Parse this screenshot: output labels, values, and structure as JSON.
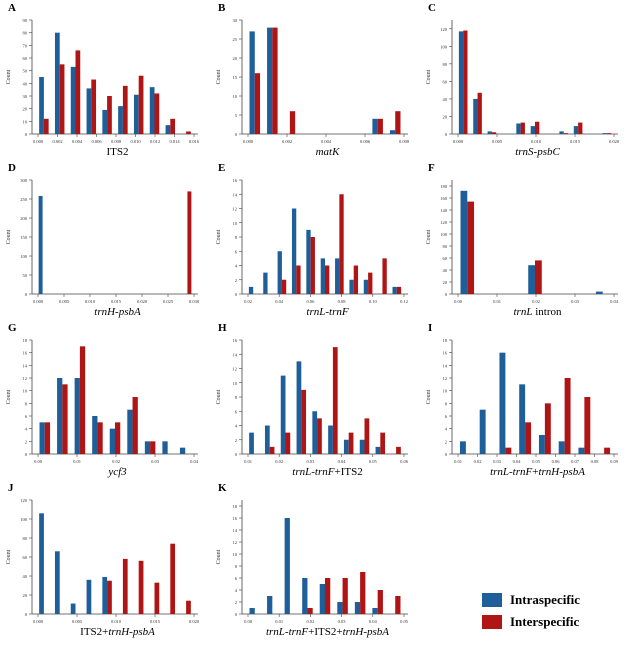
{
  "colors": {
    "intraspecific": "#1f5f99",
    "interspecific": "#b01515"
  },
  "legend": {
    "position": "bottom-right",
    "items": [
      "Intraspecific",
      "Interspecific"
    ]
  },
  "chart_data": [
    {
      "panel": "A",
      "type": "bar",
      "xlabel": [
        {
          "t": "ITS2",
          "i": false
        }
      ],
      "ylabel": "Count",
      "ylim": [
        0,
        90
      ],
      "ystep": 10,
      "xticks": [
        "0.000",
        "0.002",
        "0.004",
        "0.006",
        "0.008",
        "0.010",
        "0.012",
        "0.014",
        "0.016"
      ],
      "series": [
        {
          "name": "Intraspecific",
          "values": [
            45,
            80,
            53,
            36,
            19,
            22,
            31,
            37,
            7,
            0
          ]
        },
        {
          "name": "Interspecific",
          "values": [
            12,
            55,
            66,
            43,
            30,
            38,
            46,
            32,
            12,
            2
          ]
        }
      ]
    },
    {
      "panel": "B",
      "type": "bar",
      "xlabel": [
        {
          "t": "matK",
          "i": true
        }
      ],
      "ylabel": "Count",
      "ylim": [
        0,
        30
      ],
      "ystep": 5,
      "xticks": [
        "0.000",
        "0.002",
        "0.004",
        "0.006",
        "0.008"
      ],
      "series": [
        {
          "name": "Intraspecific",
          "values": [
            27,
            28,
            0,
            0,
            0,
            0,
            0,
            4,
            1
          ]
        },
        {
          "name": "Interspecific",
          "values": [
            16,
            28,
            6,
            0,
            0,
            0,
            0,
            4,
            6
          ]
        }
      ]
    },
    {
      "panel": "C",
      "type": "bar",
      "xlabel": [
        {
          "t": "trnS-psbC",
          "i": true
        }
      ],
      "ylabel": "Count",
      "ylim": [
        0,
        130
      ],
      "ystep": 20,
      "xticks": [
        "0.000",
        "0.005",
        "0.010",
        "0.015",
        "0.020"
      ],
      "series": [
        {
          "name": "Intraspecific",
          "values": [
            117,
            40,
            3,
            0,
            12,
            9,
            0,
            3,
            9,
            0,
            1
          ]
        },
        {
          "name": "Interspecific",
          "values": [
            118,
            47,
            2,
            0,
            13,
            14,
            0,
            1,
            13,
            0,
            1
          ]
        }
      ]
    },
    {
      "panel": "D",
      "type": "bar",
      "xlabel": [
        {
          "t": "trnH-psbA",
          "i": true
        }
      ],
      "ylabel": "Count",
      "ylim": [
        0,
        300
      ],
      "ystep": 50,
      "xticks": [
        "0.000",
        "0.005",
        "0.010",
        "0.015",
        "0.020",
        "0.025",
        "0.030"
      ],
      "series": [
        {
          "name": "Intraspecific",
          "values": [
            258,
            0,
            0,
            0,
            0,
            0,
            0,
            0,
            0,
            0,
            0,
            0
          ]
        },
        {
          "name": "Interspecific",
          "values": [
            0,
            0,
            0,
            0,
            0,
            0,
            0,
            0,
            0,
            0,
            0,
            270
          ]
        }
      ]
    },
    {
      "panel": "E",
      "type": "bar",
      "xlabel": [
        {
          "t": "trnL-trnF",
          "i": true
        }
      ],
      "ylabel": "Count",
      "ylim": [
        0,
        16
      ],
      "ystep": 2,
      "xticks": [
        "0.02",
        "0.04",
        "0.06",
        "0.08",
        "0.10",
        "0.12"
      ],
      "series": [
        {
          "name": "Intraspecific",
          "values": [
            1,
            3,
            6,
            12,
            9,
            5,
            5,
            2,
            2,
            0,
            1
          ]
        },
        {
          "name": "Interspecific",
          "values": [
            0,
            0,
            2,
            4,
            8,
            4,
            14,
            4,
            3,
            5,
            1
          ]
        }
      ]
    },
    {
      "panel": "F",
      "type": "bar",
      "xlabel": [
        {
          "t": "trnL",
          "i": true
        },
        {
          "t": " intron",
          "i": false
        }
      ],
      "ylabel": "Count",
      "ylim": [
        0,
        190
      ],
      "ystep": 20,
      "xticks": [
        "0.00",
        "0.01",
        "0.02",
        "0.03",
        "0.04"
      ],
      "series": [
        {
          "name": "Intraspecific",
          "values": [
            172,
            0,
            0,
            48,
            0,
            0,
            4
          ]
        },
        {
          "name": "Interspecific",
          "values": [
            154,
            0,
            0,
            56,
            0,
            0,
            0
          ]
        }
      ]
    },
    {
      "panel": "G",
      "type": "bar",
      "xlabel": [
        {
          "t": "ycf3",
          "i": true
        }
      ],
      "ylabel": "Count",
      "ylim": [
        0,
        18
      ],
      "ystep": 2,
      "xticks": [
        "0.00",
        "0.01",
        "0.02",
        "0.03",
        "0.04"
      ],
      "series": [
        {
          "name": "Intraspecific",
          "values": [
            5,
            12,
            12,
            6,
            4,
            7,
            2,
            2,
            1
          ]
        },
        {
          "name": "Interspecific",
          "values": [
            5,
            11,
            17,
            5,
            5,
            9,
            2,
            0,
            0
          ]
        }
      ]
    },
    {
      "panel": "H",
      "type": "bar",
      "xlabel": [
        {
          "t": "trnL-trnF",
          "i": true
        },
        {
          "t": "+ITS2",
          "i": false
        }
      ],
      "ylabel": "Count",
      "ylim": [
        0,
        16
      ],
      "ystep": 2,
      "xticks": [
        "0.01",
        "0.02",
        "0.03",
        "0.04",
        "0.05",
        "0.06"
      ],
      "series": [
        {
          "name": "Intraspecific",
          "values": [
            3,
            4,
            11,
            13,
            6,
            4,
            2,
            2,
            1,
            0
          ]
        },
        {
          "name": "Interspecific",
          "values": [
            0,
            1,
            3,
            9,
            5,
            15,
            3,
            5,
            3,
            1
          ]
        }
      ]
    },
    {
      "panel": "I",
      "type": "bar",
      "xlabel": [
        {
          "t": "trnL-trnF",
          "i": true
        },
        {
          "t": "+",
          "i": false
        },
        {
          "t": "trnH-psbA",
          "i": true
        }
      ],
      "ylabel": "Count",
      "ylim": [
        0,
        18
      ],
      "ystep": 2,
      "xticks": [
        "0.01",
        "0.02",
        "0.03",
        "0.04",
        "0.05",
        "0.06",
        "0.07",
        "0.08",
        "0.09"
      ],
      "series": [
        {
          "name": "Intraspecific",
          "values": [
            2,
            7,
            16,
            11,
            3,
            2,
            1,
            0
          ]
        },
        {
          "name": "Interspecific",
          "values": [
            0,
            0,
            1,
            5,
            8,
            12,
            9,
            1
          ]
        }
      ]
    },
    {
      "panel": "J",
      "type": "bar",
      "xlabel": [
        {
          "t": "ITS2+",
          "i": false
        },
        {
          "t": "trnH-psbA",
          "i": true
        }
      ],
      "ylabel": "Count",
      "ylim": [
        0,
        120
      ],
      "ystep": 20,
      "xticks": [
        "0.000",
        "0.005",
        "0.010",
        "0.015",
        "0.020"
      ],
      "series": [
        {
          "name": "Intraspecific",
          "values": [
            106,
            66,
            11,
            36,
            39,
            0,
            0,
            0,
            0,
            0
          ]
        },
        {
          "name": "Interspecific",
          "values": [
            0,
            0,
            0,
            0,
            35,
            58,
            56,
            33,
            74,
            14
          ]
        }
      ]
    },
    {
      "panel": "K",
      "type": "bar",
      "xlabel": [
        {
          "t": "trnL-trnF",
          "i": true
        },
        {
          "t": "+ITS2+",
          "i": false
        },
        {
          "t": "trnH-psbA",
          "i": true
        }
      ],
      "ylabel": "Count",
      "ylim": [
        0,
        19
      ],
      "ystep": 2,
      "xticks": [
        "0.00",
        "0.01",
        "0.02",
        "0.03",
        "0.04",
        "0.05"
      ],
      "series": [
        {
          "name": "Intraspecific",
          "values": [
            1,
            3,
            16,
            6,
            5,
            2,
            2,
            1,
            0
          ]
        },
        {
          "name": "Interspecific",
          "values": [
            0,
            0,
            0,
            1,
            6,
            6,
            7,
            4,
            3
          ]
        }
      ]
    }
  ]
}
